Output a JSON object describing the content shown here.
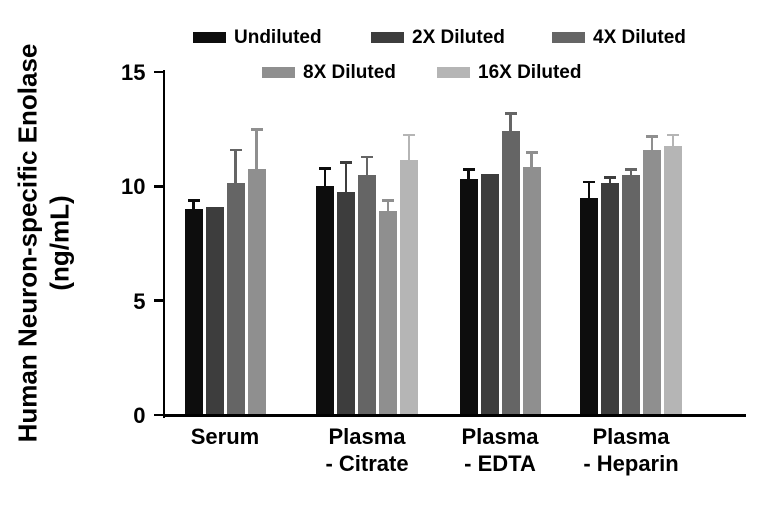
{
  "chart_data": {
    "type": "bar",
    "title": "",
    "ylabel_line1": "Human Neuron-specific Enolase",
    "ylabel_line2": "(ng/mL)",
    "xlabel": "",
    "ylim": [
      0,
      15
    ],
    "yticks": [
      "0",
      "5",
      "10",
      "15"
    ],
    "grid": false,
    "legend_position": "top",
    "categories": [
      "Serum",
      "Plasma - Citrate",
      "Plasma - EDTA",
      "Plasma - Heparin"
    ],
    "category_labels": [
      [
        "Serum"
      ],
      [
        "Plasma",
        "- Citrate"
      ],
      [
        "Plasma",
        "- EDTA"
      ],
      [
        "Plasma",
        "- Heparin"
      ]
    ],
    "series": [
      {
        "name": "Undiluted",
        "color": "#0d0d0d",
        "values": [
          9.0,
          10.0,
          10.3,
          9.5
        ],
        "errors": [
          0.4,
          0.8,
          0.45,
          0.7
        ]
      },
      {
        "name": "2X Diluted",
        "color": "#3d3d3d",
        "values": [
          9.1,
          9.75,
          10.55,
          10.15
        ],
        "errors": [
          0,
          1.3,
          0,
          0.25
        ]
      },
      {
        "name": "4X Diluted",
        "color": "#656565",
        "values": [
          10.15,
          10.5,
          12.4,
          10.5
        ],
        "errors": [
          1.45,
          0.8,
          0.8,
          0.25
        ]
      },
      {
        "name": "8X Diluted",
        "color": "#8f8f8f",
        "values": [
          10.75,
          8.9,
          10.85,
          11.6
        ],
        "errors": [
          1.75,
          0.5,
          0.65,
          0.6
        ]
      },
      {
        "name": "16X Diluted",
        "color": "#b5b5b5",
        "values": [
          null,
          11.15,
          null,
          11.75
        ],
        "errors": [
          null,
          1.1,
          null,
          0.5
        ]
      }
    ],
    "legend_rows": [
      [
        "Undiluted",
        "2X Diluted",
        "4X Diluted"
      ],
      [
        "8X Diluted",
        "16X Diluted"
      ]
    ]
  }
}
